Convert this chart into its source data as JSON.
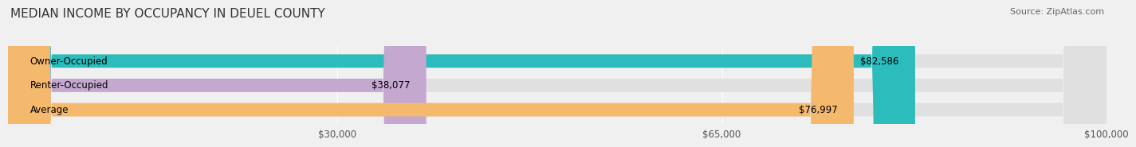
{
  "title": "MEDIAN INCOME BY OCCUPANCY IN DEUEL COUNTY",
  "source": "Source: ZipAtlas.com",
  "categories": [
    "Owner-Occupied",
    "Renter-Occupied",
    "Average"
  ],
  "values": [
    82586,
    38077,
    76997
  ],
  "bar_colors": [
    "#2bbcbb",
    "#c4a8d0",
    "#f5b96e"
  ],
  "bar_labels": [
    "$82,586",
    "$38,077",
    "$76,997"
  ],
  "xlim": [
    0,
    100000
  ],
  "xticks": [
    30000,
    65000,
    100000
  ],
  "xticklabels": [
    "$30,000",
    "$65,000",
    "$100,000"
  ],
  "background_color": "#f0f0f0",
  "bar_bg_color": "#e0e0e0",
  "title_fontsize": 11,
  "label_fontsize": 8.5,
  "source_fontsize": 8
}
